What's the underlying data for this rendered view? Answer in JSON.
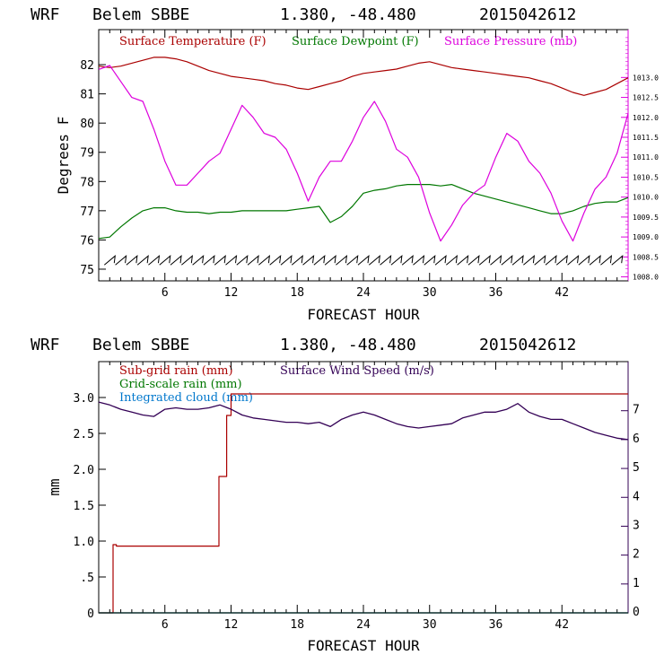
{
  "charts": [
    {
      "type": "line",
      "header": {
        "model": "WRF",
        "station": "Belem SBBE",
        "coords": "1.380, -48.480",
        "init": "2015042612"
      },
      "xlabel": "FORECAST HOUR",
      "ylabel": "Degrees F",
      "xlim": [
        0,
        48
      ],
      "ylim": [
        74.6,
        83.2
      ],
      "y2lim": [
        1007.9,
        1014.2
      ],
      "xticks": [
        "6",
        "12",
        "18",
        "24",
        "30",
        "36",
        "42"
      ],
      "yticks": [
        "75",
        "76",
        "77",
        "78",
        "79",
        "80",
        "81",
        "82"
      ],
      "y2ticks": [
        "1008.0",
        "1008.5",
        "1009.0",
        "1009.5",
        "1010.0",
        "1010.5",
        "1011.0",
        "1011.5",
        "1012.0",
        "1012.5",
        "1013.0"
      ],
      "series": [
        {
          "name": "Surface Temperature (F)",
          "color": "#aa0000",
          "axis": "left",
          "x": [
            0,
            1,
            2,
            3,
            4,
            5,
            6,
            7,
            8,
            9,
            10,
            11,
            12,
            13,
            14,
            15,
            16,
            17,
            18,
            19,
            20,
            21,
            22,
            23,
            24,
            25,
            26,
            27,
            28,
            29,
            30,
            31,
            32,
            33,
            34,
            35,
            36,
            37,
            38,
            39,
            40,
            41,
            42,
            43,
            44,
            45,
            46,
            47,
            48
          ],
          "y": [
            81.95,
            81.9,
            81.95,
            82.05,
            82.15,
            82.25,
            82.25,
            82.2,
            82.1,
            81.95,
            81.8,
            81.7,
            81.6,
            81.55,
            81.5,
            81.45,
            81.35,
            81.3,
            81.2,
            81.15,
            81.25,
            81.35,
            81.45,
            81.6,
            81.7,
            81.75,
            81.8,
            81.85,
            81.95,
            82.05,
            82.1,
            82.0,
            81.9,
            81.85,
            81.8,
            81.75,
            81.7,
            81.65,
            81.6,
            81.55,
            81.45,
            81.35,
            81.2,
            81.05,
            80.95,
            81.05,
            81.15,
            81.35,
            81.55
          ]
        },
        {
          "name": "Surface Dewpoint (F)",
          "color": "#007700",
          "axis": "left",
          "x": [
            0,
            1,
            2,
            3,
            4,
            5,
            6,
            7,
            8,
            9,
            10,
            11,
            12,
            13,
            14,
            15,
            16,
            17,
            18,
            19,
            20,
            21,
            22,
            23,
            24,
            25,
            26,
            27,
            28,
            29,
            30,
            31,
            32,
            33,
            34,
            35,
            36,
            37,
            38,
            39,
            40,
            41,
            42,
            43,
            44,
            45,
            46,
            47,
            48
          ],
          "y": [
            76.05,
            76.1,
            76.45,
            76.75,
            77.0,
            77.1,
            77.1,
            77.0,
            76.95,
            76.95,
            76.9,
            76.95,
            76.95,
            77.0,
            77.0,
            77.0,
            77.0,
            77.0,
            77.05,
            77.1,
            77.15,
            76.6,
            76.8,
            77.15,
            77.6,
            77.7,
            77.75,
            77.85,
            77.9,
            77.9,
            77.9,
            77.85,
            77.9,
            77.75,
            77.6,
            77.5,
            77.4,
            77.3,
            77.2,
            77.1,
            77.0,
            76.9,
            76.9,
            77.0,
            77.15,
            77.25,
            77.3,
            77.3,
            77.45
          ]
        },
        {
          "name": "Surface Pressure (mb)",
          "color": "#dd00dd",
          "axis": "right",
          "x": [
            0,
            1,
            2,
            3,
            4,
            5,
            6,
            7,
            8,
            9,
            10,
            11,
            12,
            13,
            14,
            15,
            16,
            17,
            18,
            19,
            20,
            21,
            22,
            23,
            24,
            25,
            26,
            27,
            28,
            29,
            30,
            31,
            32,
            33,
            34,
            35,
            36,
            37,
            38,
            39,
            40,
            41,
            42,
            43,
            44,
            45,
            46,
            47,
            48
          ],
          "y": [
            1013.2,
            1013.3,
            1012.9,
            1012.5,
            1012.4,
            1011.7,
            1010.9,
            1010.3,
            1010.3,
            1010.6,
            1010.9,
            1011.1,
            1011.7,
            1012.3,
            1012.0,
            1011.6,
            1011.5,
            1011.2,
            1010.6,
            1009.9,
            1010.5,
            1010.9,
            1010.9,
            1011.4,
            1012.0,
            1012.4,
            1011.9,
            1011.2,
            1011.0,
            1010.5,
            1009.6,
            1008.9,
            1009.3,
            1009.8,
            1010.1,
            1010.3,
            1011.0,
            1011.6,
            1011.4,
            1010.9,
            1010.6,
            1010.1,
            1009.4,
            1008.9,
            1009.6,
            1010.2,
            1010.5,
            1011.1,
            1012.1
          ]
        },
        {
          "name": "wind barbs",
          "color": "#000000",
          "axis": "left",
          "x": [
            1,
            2,
            3,
            4,
            5,
            6,
            7,
            8,
            9,
            10,
            11,
            12,
            13,
            14,
            15,
            16,
            17,
            18,
            19,
            20,
            21,
            22,
            23,
            24,
            25,
            26,
            27,
            28,
            29,
            30,
            31,
            32,
            33,
            34,
            35,
            36,
            37,
            38,
            39,
            40,
            41,
            42,
            43,
            44,
            45,
            46,
            47
          ],
          "y": [
            75.3,
            75.3,
            75.3,
            75.3,
            75.3,
            75.3,
            75.3,
            75.3,
            75.3,
            75.3,
            75.3,
            75.3,
            75.3,
            75.3,
            75.3,
            75.3,
            75.3,
            75.3,
            75.3,
            75.3,
            75.3,
            75.3,
            75.3,
            75.3,
            75.3,
            75.3,
            75.3,
            75.3,
            75.3,
            75.3,
            75.3,
            75.3,
            75.3,
            75.3,
            75.3,
            75.3,
            75.3,
            75.3,
            75.3,
            75.3,
            75.3,
            75.3,
            75.3,
            75.3,
            75.3,
            75.3,
            75.3
          ]
        }
      ]
    },
    {
      "type": "line",
      "header": {
        "model": "WRF",
        "station": "Belem SBBE",
        "coords": "1.380, -48.480",
        "init": "2015042612"
      },
      "xlabel": "FORECAST HOUR",
      "ylabel": "mm",
      "xlim": [
        0,
        48
      ],
      "ylim": [
        0,
        3.5
      ],
      "y2lim": [
        0,
        8.7
      ],
      "xticks": [
        "6",
        "12",
        "18",
        "24",
        "30",
        "36",
        "42"
      ],
      "yticks": [
        "0",
        ".5",
        "1.0",
        "1.5",
        "2.0",
        "2.5",
        "3.0"
      ],
      "y2ticks": [
        "0",
        "1",
        "2",
        "3",
        "4",
        "5",
        "6",
        "7"
      ],
      "series": [
        {
          "name": "Sub-grid rain (mm)",
          "color": "#aa0000",
          "axis": "left",
          "step": true,
          "x": [
            0,
            1.3,
            1.3,
            1.6,
            1.6,
            10.9,
            10.9,
            11.6,
            11.6,
            12.0,
            12.0,
            48
          ],
          "y": [
            0,
            0,
            0.95,
            0.95,
            0.93,
            0.93,
            1.9,
            1.9,
            2.75,
            2.75,
            3.05,
            3.05
          ]
        },
        {
          "name": "Grid-scale rain (mm)",
          "color": "#007700",
          "axis": "left",
          "x": [
            0,
            48
          ],
          "y": [
            0,
            0
          ]
        },
        {
          "name": "Integrated cloud (mm)",
          "color": "#0077cc",
          "axis": "left",
          "x": [
            0,
            48
          ],
          "y": [
            0,
            0
          ]
        },
        {
          "name": "Surface Wind Speed (m/s)",
          "color": "#330055",
          "axis": "right",
          "x": [
            0,
            1,
            2,
            3,
            4,
            5,
            6,
            7,
            8,
            9,
            10,
            11,
            12,
            13,
            14,
            15,
            16,
            17,
            18,
            19,
            20,
            21,
            22,
            23,
            24,
            25,
            26,
            27,
            28,
            29,
            30,
            31,
            32,
            33,
            34,
            35,
            36,
            37,
            38,
            39,
            40,
            41,
            42,
            43,
            44,
            45,
            46,
            47,
            48
          ],
          "y": [
            7.3,
            7.2,
            7.05,
            6.95,
            6.85,
            6.8,
            7.05,
            7.1,
            7.05,
            7.05,
            7.1,
            7.2,
            7.05,
            6.85,
            6.75,
            6.7,
            6.65,
            6.6,
            6.6,
            6.55,
            6.6,
            6.45,
            6.7,
            6.85,
            6.95,
            6.85,
            6.7,
            6.55,
            6.45,
            6.4,
            6.45,
            6.5,
            6.55,
            6.75,
            6.85,
            6.95,
            6.95,
            7.05,
            7.25,
            6.95,
            6.8,
            6.7,
            6.7,
            6.55,
            6.4,
            6.25,
            6.15,
            6.05,
            6.0
          ]
        }
      ]
    }
  ]
}
